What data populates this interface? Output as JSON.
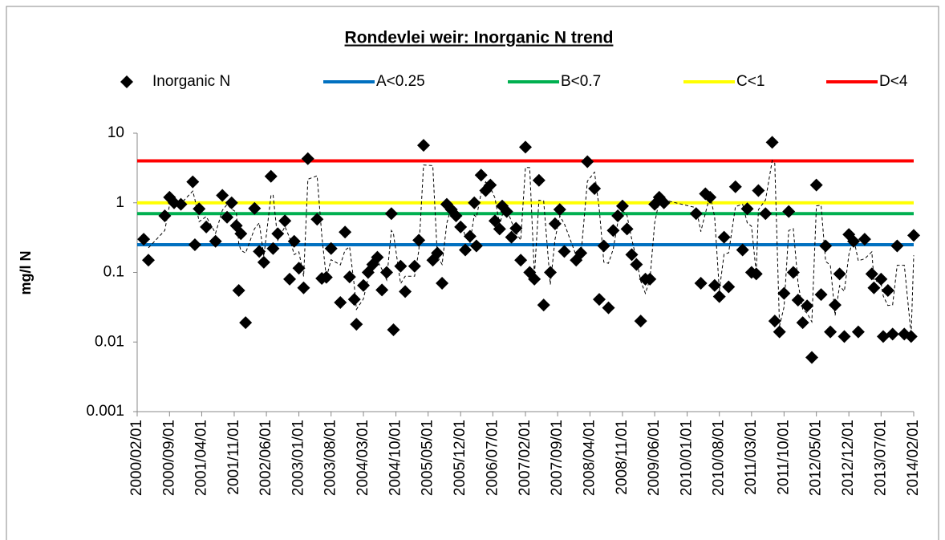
{
  "chart_data": {
    "type": "scatter",
    "title": "Rondevlei weir: Inorganic N trend",
    "y_label": "mg/l N",
    "log_y": true,
    "grid": false,
    "legend": "top",
    "ylim": [
      0.001,
      10
    ],
    "yticks": [
      0.001,
      0.01,
      0.1,
      1,
      10
    ],
    "xlim": [
      "2000/02/01",
      "2014/02/01"
    ],
    "xticks": [
      "2000/02/01",
      "2000/09/01",
      "2001/04/01",
      "2001/11/01",
      "2002/06/01",
      "2003/01/01",
      "2003/08/01",
      "2004/03/01",
      "2004/10/01",
      "2005/05/01",
      "2005/12/01",
      "2006/07/01",
      "2007/02/01",
      "2007/09/01",
      "2008/04/01",
      "2008/11/01",
      "2009/06/01",
      "2010/01/01",
      "2010/08/01",
      "2011/03/01",
      "2011/10/01",
      "2012/05/01",
      "2012/12/01",
      "2013/07/01",
      "2014/02/01"
    ],
    "x": [
      "2000/03/15",
      "2000/04/15",
      "2000/08/01",
      "2000/09/01",
      "2000/10/01",
      "2000/11/15",
      "2001/02/01",
      "2001/02/15",
      "2001/03/15",
      "2001/05/01",
      "2001/07/01",
      "2001/08/15",
      "2001/09/15",
      "2001/10/15",
      "2001/11/15",
      "2001/12/01",
      "2001/12/15",
      "2002/01/15",
      "2002/03/15",
      "2002/04/15",
      "2002/05/15",
      "2002/07/01",
      "2002/07/15",
      "2002/08/15",
      "2002/10/01",
      "2002/11/01",
      "2002/12/01",
      "2003/01/01",
      "2003/02/01",
      "2003/03/01",
      "2003/05/01",
      "2003/06/01",
      "2003/07/01",
      "2003/08/01",
      "2003/10/01",
      "2003/11/01",
      "2003/12/01",
      "2004/01/01",
      "2004/01/15",
      "2004/03/01",
      "2004/04/01",
      "2004/05/01",
      "2004/06/01",
      "2004/07/01",
      "2004/08/01",
      "2004/09/01",
      "2004/09/15",
      "2004/11/01",
      "2004/12/01",
      "2005/02/01",
      "2005/03/01",
      "2005/04/01",
      "2005/06/01",
      "2005/07/01",
      "2005/08/01",
      "2005/09/01",
      "2005/10/01",
      "2005/11/01",
      "2005/12/01",
      "2006/01/01",
      "2006/02/01",
      "2006/03/01",
      "2006/03/15",
      "2006/04/15",
      "2006/05/15",
      "2006/06/15",
      "2006/07/15",
      "2006/08/15",
      "2006/09/01",
      "2006/10/01",
      "2006/11/01",
      "2006/12/01",
      "2007/01/01",
      "2007/02/01",
      "2007/03/01",
      "2007/04/01",
      "2007/05/01",
      "2007/06/01",
      "2007/07/15",
      "2007/08/15",
      "2007/09/15",
      "2007/10/15",
      "2008/01/01",
      "2008/02/01",
      "2008/03/15",
      "2008/05/01",
      "2008/06/01",
      "2008/07/01",
      "2008/08/01",
      "2008/09/01",
      "2008/10/01",
      "2008/11/01",
      "2008/12/01",
      "2009/01/01",
      "2009/02/01",
      "2009/03/01",
      "2009/04/01",
      "2009/05/01",
      "2009/06/01",
      "2009/07/01",
      "2009/08/01",
      "2010/03/01",
      "2010/04/01",
      "2010/05/01",
      "2010/06/01",
      "2010/07/01",
      "2010/08/01",
      "2010/09/01",
      "2010/10/01",
      "2010/11/15",
      "2011/01/01",
      "2011/02/01",
      "2011/03/01",
      "2011/04/01",
      "2011/04/15",
      "2011/06/01",
      "2011/07/15",
      "2011/08/01",
      "2011/09/01",
      "2011/10/01",
      "2011/11/01",
      "2011/12/01",
      "2012/01/01",
      "2012/02/01",
      "2012/03/01",
      "2012/04/01",
      "2012/05/01",
      "2012/06/01",
      "2012/07/01",
      "2012/08/01",
      "2012/09/01",
      "2012/10/01",
      "2012/11/01",
      "2012/12/01",
      "2013/01/01",
      "2013/02/01",
      "2013/03/15",
      "2013/05/01",
      "2013/05/15",
      "2013/07/01",
      "2013/07/15",
      "2013/08/15",
      "2013/09/15",
      "2013/10/15",
      "2013/12/01",
      "2014/01/15",
      "2014/02/01"
    ],
    "series": [
      {
        "name": "Inorganic N",
        "color": "#000000",
        "values": [
          0.3,
          0.15,
          0.65,
          1.2,
          1.0,
          0.95,
          2.0,
          0.25,
          0.82,
          0.45,
          0.28,
          1.28,
          0.62,
          1.0,
          0.47,
          0.055,
          0.36,
          0.019,
          0.83,
          0.2,
          0.14,
          2.4,
          0.22,
          0.36,
          0.55,
          0.08,
          0.28,
          0.115,
          0.06,
          4.3,
          0.58,
          0.082,
          0.085,
          0.22,
          0.037,
          0.38,
          0.086,
          0.041,
          0.018,
          0.065,
          0.1,
          0.13,
          0.165,
          0.056,
          0.1,
          0.7,
          0.015,
          0.123,
          0.053,
          0.123,
          0.29,
          6.7,
          0.15,
          0.19,
          0.07,
          0.95,
          0.8,
          0.65,
          0.45,
          0.21,
          0.33,
          1.0,
          0.24,
          2.5,
          1.5,
          1.8,
          0.55,
          0.42,
          0.9,
          0.75,
          0.32,
          0.43,
          0.15,
          6.3,
          0.1,
          0.08,
          2.1,
          0.034,
          0.1,
          0.5,
          0.8,
          0.2,
          0.15,
          0.19,
          3.9,
          1.6,
          0.041,
          0.24,
          0.031,
          0.4,
          0.65,
          0.9,
          0.42,
          0.18,
          0.13,
          0.02,
          0.08,
          0.08,
          0.95,
          1.2,
          1.0,
          0.7,
          0.07,
          1.35,
          1.2,
          0.065,
          0.045,
          0.32,
          0.062,
          1.7,
          0.21,
          0.82,
          0.1,
          0.095,
          1.5,
          0.7,
          7.4,
          0.02,
          0.014,
          0.05,
          0.75,
          0.1,
          0.04,
          0.019,
          0.033,
          0.006,
          1.8,
          0.048,
          0.24,
          0.014,
          0.034,
          0.095,
          0.012,
          0.35,
          0.28,
          0.014,
          0.3,
          0.095,
          0.06,
          0.08,
          0.012,
          0.055,
          0.013,
          0.24,
          0.013,
          0.012,
          0.34
        ]
      }
    ],
    "trendline": {
      "type": "moving_average",
      "period": 2,
      "color": "#000000"
    },
    "reference_lines": [
      {
        "name": "A<0.25",
        "value": 0.25,
        "color": "#0070c0"
      },
      {
        "name": "B<0.7",
        "value": 0.7,
        "color": "#00b050"
      },
      {
        "name": "C<1",
        "value": 1,
        "color": "#ffff00"
      },
      {
        "name": "D<4",
        "value": 4,
        "color": "#ff0000"
      }
    ]
  }
}
